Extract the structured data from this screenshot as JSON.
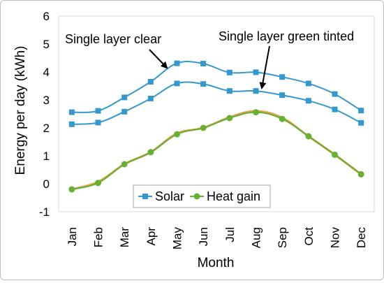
{
  "chart_data": {
    "type": "line",
    "xlabel": "Month",
    "ylabel": "Energy per day (kWh)",
    "ylim": [
      -1,
      6
    ],
    "yticks": [
      "-1",
      "0",
      "1",
      "2",
      "3",
      "4",
      "5",
      "6"
    ],
    "categories": [
      "Jan",
      "Feb",
      "Mar",
      "Apr",
      "May",
      "Jun",
      "Jul",
      "Aug",
      "Sep",
      "Oct",
      "Nov",
      "Dec"
    ],
    "grid": false,
    "legend_position": "bottom-center",
    "series": [
      {
        "name": "Solar",
        "group": "Single layer clear",
        "color": "#3399cc",
        "marker": "square",
        "values": [
          2.56,
          2.61,
          3.09,
          3.65,
          4.31,
          4.3,
          3.98,
          3.99,
          3.82,
          3.59,
          3.21,
          2.62
        ]
      },
      {
        "name": "Solar",
        "group": "Single layer green tinted",
        "color": "#3399cc",
        "marker": "square",
        "values": [
          2.13,
          2.19,
          2.58,
          3.05,
          3.59,
          3.57,
          3.32,
          3.32,
          3.17,
          2.97,
          2.66,
          2.18
        ]
      },
      {
        "name": "Heat gain",
        "group": "Single layer clear",
        "color": "#e0a050",
        "marker": "none",
        "values": [
          -0.2,
          0.07,
          0.7,
          1.13,
          1.8,
          2.0,
          2.38,
          2.6,
          2.36,
          1.7,
          1.04,
          0.34
        ]
      },
      {
        "name": "Heat gain",
        "group": "Single layer green tinted",
        "color": "#66b032",
        "marker": "circle",
        "values": [
          -0.2,
          0.03,
          0.7,
          1.13,
          1.77,
          2.0,
          2.35,
          2.56,
          2.32,
          1.7,
          1.04,
          0.34
        ]
      }
    ],
    "annotations": [
      {
        "text": "Single layer clear"
      },
      {
        "text": "Single layer green tinted"
      }
    ]
  },
  "legend": {
    "items": [
      {
        "label": "Solar",
        "color": "#3399cc",
        "marker": "square"
      },
      {
        "label": "Heat gain",
        "color": "#66b032",
        "marker": "circle"
      }
    ]
  }
}
